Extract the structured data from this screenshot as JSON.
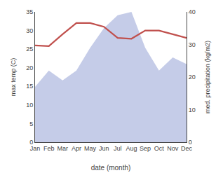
{
  "chart_data": {
    "type": "line",
    "xlabel": "date (month)",
    "ylabel": "max temp (C)",
    "y2label": "med. precipitation (kg/m2)",
    "categories": [
      "Jan",
      "Feb",
      "Mar",
      "Apr",
      "May",
      "Jun",
      "Jul",
      "Aug",
      "Sep",
      "Oct",
      "Nov",
      "Dec"
    ],
    "series": [
      {
        "type": "area",
        "axis": "y2",
        "color": "#c5cce8",
        "values": [
          17,
          22,
          19,
          22,
          29,
          35,
          39,
          40,
          29,
          22,
          26,
          24
        ]
      },
      {
        "type": "line",
        "color": "#c0504d",
        "values": [
          26,
          25.8,
          29,
          32,
          32,
          31,
          28,
          27.8,
          30,
          30,
          29,
          28
        ]
      }
    ],
    "ylim": [
      0,
      35
    ],
    "yticks": [
      0,
      5,
      10,
      15,
      20,
      25,
      30,
      35
    ],
    "y2lim": [
      0,
      40
    ],
    "y2ticks": [
      0,
      10,
      20,
      30,
      40
    ],
    "grid": false
  }
}
